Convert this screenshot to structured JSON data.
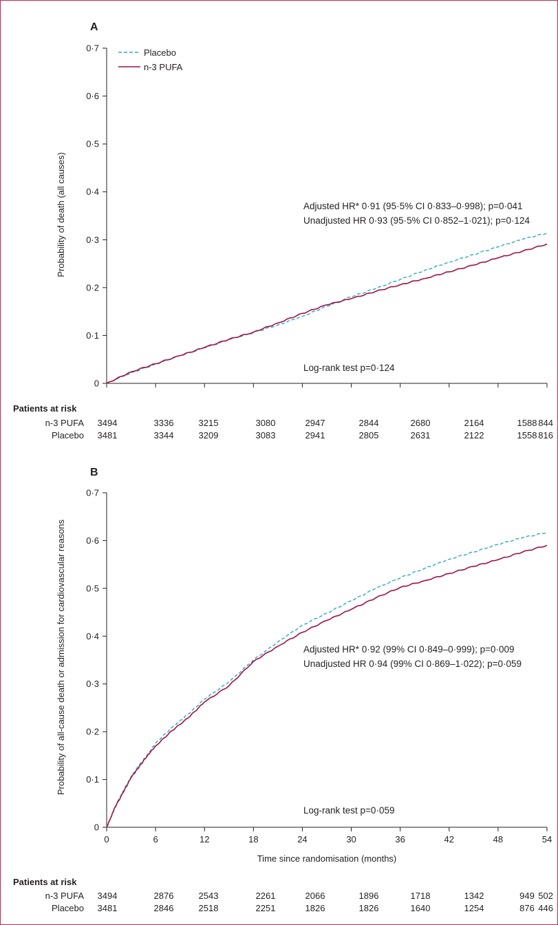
{
  "colors": {
    "placebo": "#2aa8c4",
    "pufa": "#a0103f",
    "axis": "#231f20",
    "frame": "#c3264f"
  },
  "legend": {
    "placebo": "Placebo",
    "pufa": "n-3 PUFA"
  },
  "risk_table": {
    "title": "Patients at risk",
    "row_labels": [
      "n-3 PUFA",
      "Placebo"
    ]
  },
  "chart_data": [
    {
      "type": "line",
      "panel": "A",
      "xlabel": "",
      "ylabel": "Probability of death (all causes)",
      "xlim": [
        0,
        54
      ],
      "ylim": [
        0,
        0.7
      ],
      "x_ticks": [
        0,
        6,
        12,
        18,
        24,
        30,
        36,
        42,
        48,
        54
      ],
      "y_ticks": [
        "0",
        "0·1",
        "0·2",
        "0·3",
        "0·4",
        "0·5",
        "0·6",
        "0·7"
      ],
      "grid": false,
      "legend_position": "top-left",
      "annotations": [
        "Adjusted HR* 0·91 (95·5% CI 0·833–0·998); p=0·041",
        "Unadjusted HR 0·93 (95·5% CI 0·852–1·021); p=0·124",
        "Log-rank test p=0·124"
      ],
      "series": [
        {
          "name": "Placebo",
          "style": "dashed",
          "x": [
            0,
            3,
            6,
            9,
            12,
            15,
            18,
            21,
            24,
            27,
            30,
            33,
            36,
            39,
            42,
            45,
            48,
            51,
            54
          ],
          "y": [
            0,
            0.022,
            0.04,
            0.058,
            0.074,
            0.091,
            0.106,
            0.122,
            0.14,
            0.161,
            0.181,
            0.198,
            0.217,
            0.236,
            0.253,
            0.269,
            0.285,
            0.301,
            0.314
          ]
        },
        {
          "name": "n-3 PUFA",
          "style": "solid",
          "x": [
            0,
            3,
            6,
            9,
            12,
            15,
            18,
            21,
            24,
            27,
            30,
            33,
            36,
            39,
            42,
            45,
            48,
            51,
            54
          ],
          "y": [
            0,
            0.024,
            0.041,
            0.058,
            0.075,
            0.092,
            0.107,
            0.126,
            0.146,
            0.164,
            0.177,
            0.192,
            0.206,
            0.219,
            0.233,
            0.247,
            0.262,
            0.276,
            0.291
          ]
        }
      ],
      "risk_numbers": {
        "n-3 PUFA": [
          "3494",
          "3336",
          "3215",
          "3080",
          "2947",
          "2844",
          "2680",
          "2164",
          "1588",
          "844"
        ],
        "Placebo": [
          "3481",
          "3344",
          "3209",
          "3083",
          "2941",
          "2805",
          "2631",
          "2122",
          "1558",
          "816"
        ]
      }
    },
    {
      "type": "line",
      "panel": "B",
      "xlabel": "Time since randomisation (months)",
      "ylabel": "Probability of all-cause death or admission for cardiovascular reasons",
      "xlim": [
        0,
        54
      ],
      "ylim": [
        0,
        0.7
      ],
      "x_ticks": [
        0,
        6,
        12,
        18,
        24,
        30,
        36,
        42,
        48,
        54
      ],
      "y_ticks": [
        "0",
        "0·1",
        "0·2",
        "0·3",
        "0·4",
        "0·5",
        "0·6",
        "0·7"
      ],
      "grid": false,
      "annotations": [
        "Adjusted HR* 0·92 (99% CI 0·849–0·999); p=0·009",
        "Unadjusted HR 0·94 (99% CI 0·869–1·022); p=0·059",
        "Log-rank test p=0·059"
      ],
      "series": [
        {
          "name": "Placebo",
          "style": "dashed",
          "x": [
            0,
            0.5,
            1,
            2,
            3,
            4,
            5,
            6,
            8,
            10,
            12,
            15,
            18,
            21,
            24,
            27,
            30,
            33,
            36,
            39,
            42,
            45,
            48,
            51,
            54
          ],
          "y": [
            0,
            0.02,
            0.042,
            0.075,
            0.106,
            0.13,
            0.152,
            0.176,
            0.209,
            0.237,
            0.268,
            0.304,
            0.35,
            0.388,
            0.423,
            0.448,
            0.474,
            0.5,
            0.522,
            0.542,
            0.561,
            0.576,
            0.592,
            0.606,
            0.617
          ]
        },
        {
          "name": "n-3 PUFA",
          "style": "solid",
          "x": [
            0,
            0.5,
            1,
            2,
            3,
            4,
            5,
            6,
            8,
            10,
            12,
            15,
            18,
            21,
            24,
            27,
            30,
            33,
            36,
            39,
            42,
            45,
            48,
            51,
            54
          ],
          "y": [
            0,
            0.02,
            0.041,
            0.072,
            0.104,
            0.127,
            0.15,
            0.17,
            0.202,
            0.229,
            0.262,
            0.296,
            0.347,
            0.379,
            0.408,
            0.433,
            0.456,
            0.48,
            0.502,
            0.516,
            0.531,
            0.546,
            0.56,
            0.576,
            0.59
          ]
        }
      ],
      "risk_numbers": {
        "n-3 PUFA": [
          "3494",
          "2876",
          "2543",
          "2261",
          "2066",
          "1896",
          "1718",
          "1342",
          "949",
          "502"
        ],
        "Placebo": [
          "3481",
          "2846",
          "2518",
          "2251",
          "1826",
          "1826",
          "1640",
          "1254",
          "876",
          "446"
        ]
      }
    }
  ]
}
